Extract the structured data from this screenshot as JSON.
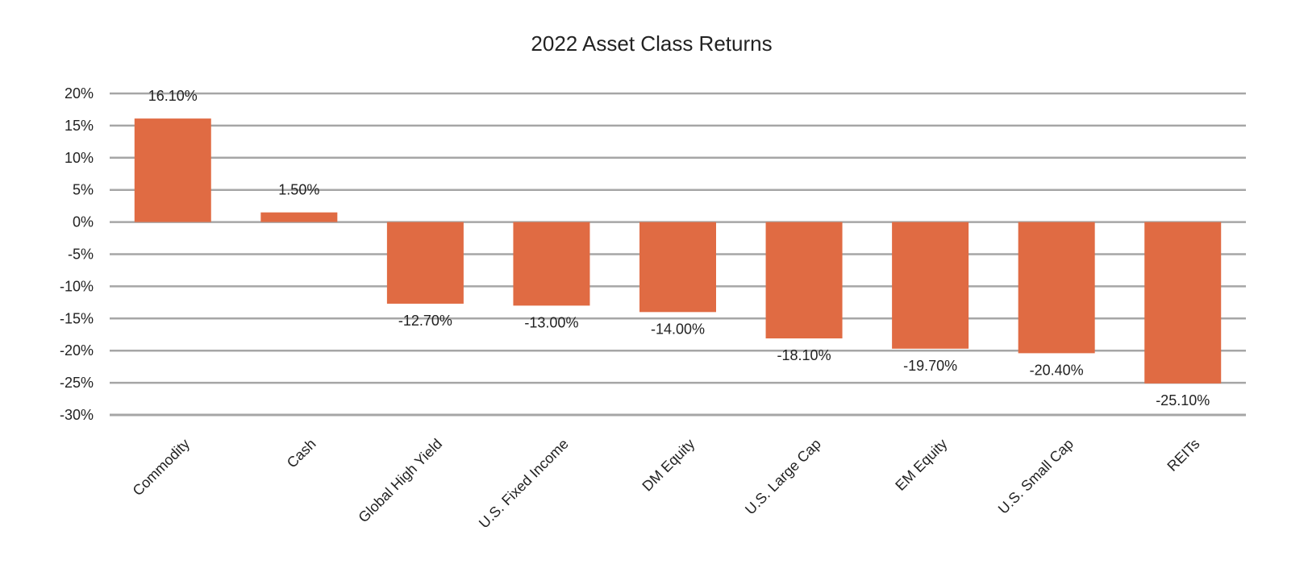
{
  "chart_data": {
    "type": "bar",
    "title": "2022 Asset Class Returns",
    "xlabel": "",
    "ylabel": "",
    "categories": [
      "Commodity",
      "Cash",
      "Global High Yield",
      "U.S. Fixed Income",
      "DM Equity",
      "U.S. Large Cap",
      "EM Equity",
      "U.S. Small Cap",
      "REITs"
    ],
    "values": [
      16.1,
      1.5,
      -12.7,
      -13.0,
      -14.0,
      -18.1,
      -19.7,
      -20.4,
      -25.1
    ],
    "data_labels": [
      "16.10%",
      "1.50%",
      "-12.70%",
      "-13.00%",
      "-14.00%",
      "-18.10%",
      "-19.70%",
      "-20.40%",
      "-25.10%"
    ],
    "ylim": [
      -30,
      20
    ],
    "yticks": [
      20,
      15,
      10,
      5,
      0,
      -5,
      -10,
      -15,
      -20,
      -25,
      -30
    ],
    "ytick_labels": [
      "20%",
      "15%",
      "10%",
      "5%",
      "0%",
      "-5%",
      "-10%",
      "-15%",
      "-20%",
      "-25%",
      "-30%"
    ],
    "grid": true,
    "legend": "none",
    "colors": {
      "bar": "#E06B43",
      "grid": "#A6A6A6",
      "text": "#222222"
    }
  }
}
